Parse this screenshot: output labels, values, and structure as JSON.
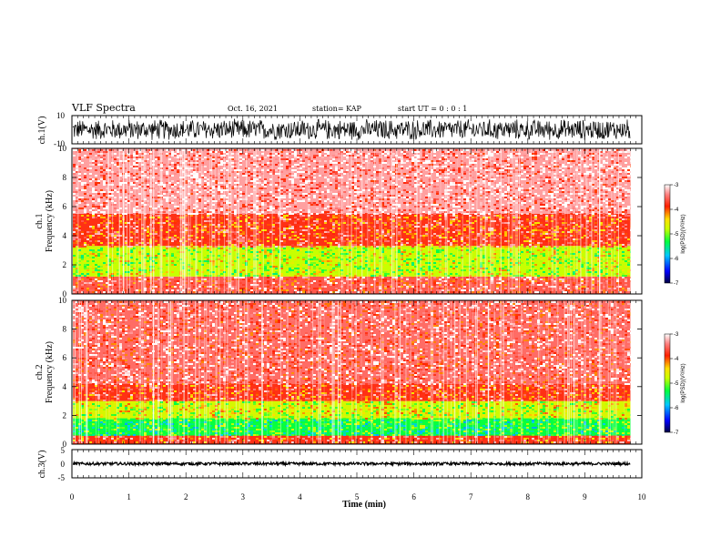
{
  "header": {
    "title": "VLF Spectra",
    "date": "Oct. 16, 2021",
    "station": "station= KAP",
    "start_ut": "start UT =   0 : 0  : 1"
  },
  "chart_data": [
    {
      "type": "line",
      "name": "ch1-waveform",
      "ylabel": "ch.1(V)",
      "ylim": [
        -10,
        10
      ],
      "yticks": [
        "10",
        "-10"
      ],
      "xlim": [
        0,
        10
      ],
      "data_end_min": 9.8,
      "description_values": "dense noise roughly spanning -8 to 8 V"
    },
    {
      "type": "heatmap",
      "name": "ch1-spectrogram",
      "ylabel_line1": "ch.1",
      "ylabel_line2": "Frequency (kHz)",
      "ylim": [
        0,
        10
      ],
      "yticks": [
        "0",
        "2",
        "4",
        "6",
        "8",
        "10"
      ],
      "xlim": [
        0,
        10
      ],
      "colorbar": {
        "label": "log(PSD)(V²/Hz)",
        "range": [
          -7,
          -3
        ],
        "ticks": [
          "-3",
          "-4",
          "-5",
          "-6",
          "-7"
        ]
      },
      "bands": [
        {
          "from_khz": 0,
          "to_khz": 1.2,
          "level": -3.6
        },
        {
          "from_khz": 1.2,
          "to_khz": 3.3,
          "level": -4.8
        },
        {
          "from_khz": 3.3,
          "to_khz": 5.5,
          "level": -3.8
        },
        {
          "from_khz": 5.5,
          "to_khz": 10,
          "level": -3.3
        }
      ]
    },
    {
      "type": "heatmap",
      "name": "ch2-spectrogram",
      "ylabel_line1": "ch.2",
      "ylabel_line2": "Frequency (kHz)",
      "ylim": [
        0,
        10
      ],
      "yticks": [
        "0",
        "2",
        "4",
        "6",
        "8",
        "10"
      ],
      "xlim": [
        0,
        10
      ],
      "colorbar": {
        "label": "log(PSD)(V²/Hz)",
        "range": [
          -7,
          -3
        ],
        "ticks": [
          "-3",
          "-4",
          "-5",
          "-6",
          "-7"
        ]
      },
      "bands": [
        {
          "from_khz": 0,
          "to_khz": 0.6,
          "level": -3.8
        },
        {
          "from_khz": 0.6,
          "to_khz": 1.8,
          "level": -5.3
        },
        {
          "from_khz": 1.8,
          "to_khz": 3.0,
          "level": -4.7
        },
        {
          "from_khz": 3.0,
          "to_khz": 4.2,
          "level": -3.8
        },
        {
          "from_khz": 4.2,
          "to_khz": 10,
          "level": -3.5
        }
      ]
    },
    {
      "type": "line",
      "name": "ch3-waveform",
      "ylabel": "ch.3(V)",
      "ylim": [
        -5,
        5
      ],
      "yticks": [
        "5",
        "0",
        "-5"
      ],
      "xlim": [
        0,
        10
      ],
      "data_end_min": 9.8,
      "level_v": 0
    }
  ],
  "xaxis": {
    "label": "Time (min)",
    "ticks": [
      "0",
      "1",
      "2",
      "3",
      "4",
      "5",
      "6",
      "7",
      "8",
      "9",
      "10"
    ]
  }
}
